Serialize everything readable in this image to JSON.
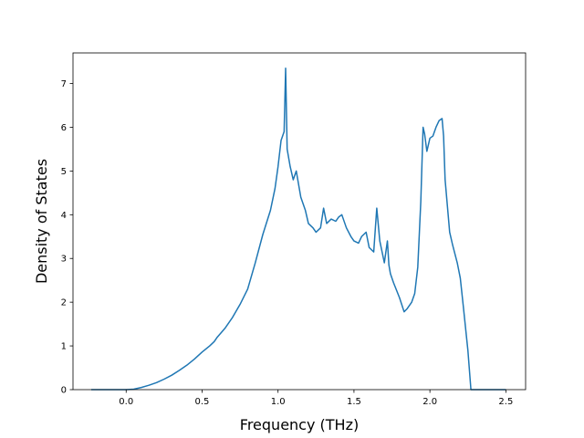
{
  "chart_data": {
    "type": "line",
    "title": "",
    "xlabel": "Frequency (THz)",
    "ylabel": "Density of States",
    "xlim": [
      -0.35,
      2.63
    ],
    "ylim": [
      0,
      7.7
    ],
    "xticks": [
      0.0,
      0.5,
      1.0,
      1.5,
      2.0,
      2.5
    ],
    "xtick_labels": [
      "0.0",
      "0.5",
      "1.0",
      "1.5",
      "2.0",
      "2.5"
    ],
    "yticks": [
      0,
      1,
      2,
      3,
      4,
      5,
      6,
      7
    ],
    "ytick_labels": [
      "0",
      "1",
      "2",
      "3",
      "4",
      "5",
      "6",
      "7"
    ],
    "grid": false,
    "line_color": "#1f77b4",
    "series": [
      {
        "x": [
          -0.23,
          0.0,
          0.05,
          0.1,
          0.15,
          0.2,
          0.25,
          0.3,
          0.35,
          0.4,
          0.45,
          0.5,
          0.55,
          0.58,
          0.6,
          0.65,
          0.7,
          0.75,
          0.8,
          0.85,
          0.9,
          0.95,
          0.98,
          1.0,
          1.02,
          1.04,
          1.05,
          1.06,
          1.08,
          1.1,
          1.12,
          1.15,
          1.18,
          1.2,
          1.23,
          1.25,
          1.28,
          1.3,
          1.32,
          1.35,
          1.38,
          1.4,
          1.42,
          1.45,
          1.48,
          1.5,
          1.53,
          1.55,
          1.58,
          1.6,
          1.63,
          1.65,
          1.67,
          1.7,
          1.72,
          1.73,
          1.74,
          1.76,
          1.8,
          1.83,
          1.85,
          1.88,
          1.9,
          1.92,
          1.94,
          1.955,
          1.965,
          1.98,
          2.0,
          2.02,
          2.04,
          2.06,
          2.08,
          2.09,
          2.1,
          2.13,
          2.15,
          2.18,
          2.2,
          2.22,
          2.25,
          2.27,
          2.3,
          2.5
        ],
        "y": [
          0,
          0,
          0.01,
          0.05,
          0.1,
          0.16,
          0.24,
          0.33,
          0.44,
          0.56,
          0.7,
          0.86,
          1.0,
          1.1,
          1.2,
          1.4,
          1.65,
          1.95,
          2.3,
          2.9,
          3.55,
          4.1,
          4.6,
          5.1,
          5.7,
          5.9,
          7.35,
          5.5,
          5.1,
          4.8,
          5.0,
          4.4,
          4.1,
          3.8,
          3.7,
          3.6,
          3.7,
          4.15,
          3.8,
          3.9,
          3.85,
          3.95,
          4.0,
          3.7,
          3.5,
          3.4,
          3.35,
          3.5,
          3.6,
          3.25,
          3.15,
          4.15,
          3.4,
          2.9,
          3.4,
          2.85,
          2.65,
          2.45,
          2.1,
          1.78,
          1.85,
          2.0,
          2.2,
          2.8,
          4.3,
          6.0,
          5.85,
          5.45,
          5.75,
          5.8,
          6.0,
          6.15,
          6.2,
          5.8,
          4.8,
          3.6,
          3.3,
          2.9,
          2.55,
          1.9,
          0.9,
          0,
          0,
          0
        ]
      }
    ]
  }
}
